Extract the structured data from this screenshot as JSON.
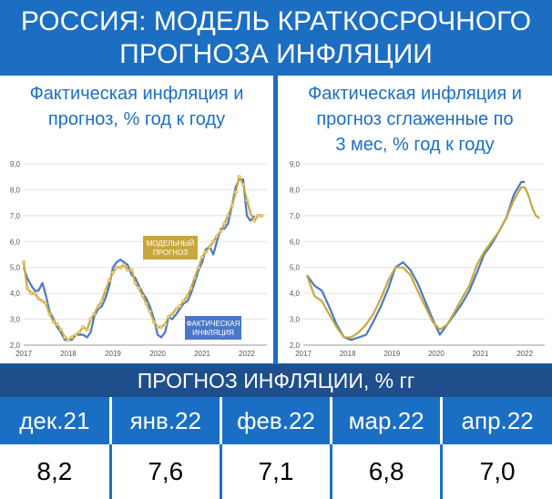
{
  "header": {
    "line1": "РОССИЯ: МОДЕЛЬ КРАТКОСРОЧНОГО",
    "line2": "ПРОГНОЗА ИНФЛЯЦИИ"
  },
  "left_panel": {
    "title_line1": "Фактическая инфляция и",
    "title_line2": "прогноз, % год к году"
  },
  "right_panel": {
    "title_line1": "Фактическая инфляция и",
    "title_line2": "прогноз сглаженные по",
    "title_line3": "3 мес, % год к году"
  },
  "forecast_table": {
    "title": "ПРОГНОЗ ИНФЛЯЦИИ, % гг",
    "months": [
      "дек.21",
      "янв.22",
      "фев.22",
      "мар.22",
      "апр.22"
    ],
    "values": [
      "8,2",
      "7,6",
      "7,1",
      "6,8",
      "7,0"
    ]
  },
  "colors": {
    "actual": "#4a78c8",
    "model": "#c8a83c",
    "header_bg": "#1b6ec2",
    "band_bg": "#1f4e8c"
  },
  "chart_data": [
    {
      "type": "line",
      "x_ticks": [
        "2017",
        "2018",
        "2019",
        "2020",
        "2021",
        "2022"
      ],
      "y_ticks": [
        "2,0",
        "3,0",
        "4,0",
        "5,0",
        "6,0",
        "7,0",
        "8,0",
        "9,0"
      ],
      "ylim": [
        2.0,
        9.0
      ],
      "xlim": [
        2017.0,
        2022.45
      ],
      "annotations": [
        {
          "text_line1": "МОДЕЛЬНЫЙ",
          "text_line2": "ПРОГНОЗ",
          "series": "model"
        },
        {
          "text_line1": "ФАКТИЧЕСКАЯ",
          "text_line2": "ИНФЛЯЦИЯ",
          "series": "actual"
        }
      ],
      "series": [
        {
          "key": "actual",
          "x": [
            2017.0,
            2017.08,
            2017.17,
            2017.25,
            2017.33,
            2017.42,
            2017.5,
            2017.58,
            2017.67,
            2017.75,
            2017.83,
            2017.92,
            2018.0,
            2018.08,
            2018.17,
            2018.25,
            2018.33,
            2018.42,
            2018.5,
            2018.58,
            2018.67,
            2018.75,
            2018.83,
            2018.92,
            2019.0,
            2019.08,
            2019.17,
            2019.25,
            2019.33,
            2019.42,
            2019.5,
            2019.58,
            2019.67,
            2019.75,
            2019.83,
            2019.92,
            2020.0,
            2020.08,
            2020.17,
            2020.25,
            2020.33,
            2020.42,
            2020.5,
            2020.58,
            2020.67,
            2020.75,
            2020.83,
            2020.92,
            2021.0,
            2021.08,
            2021.17,
            2021.25,
            2021.33,
            2021.42,
            2021.5,
            2021.58,
            2021.67,
            2021.75,
            2021.83,
            2021.92,
            2022.0,
            2022.08,
            2022.17
          ],
          "y": [
            5.0,
            4.6,
            4.3,
            4.1,
            4.1,
            4.4,
            3.9,
            3.3,
            3.0,
            2.7,
            2.5,
            2.2,
            2.2,
            2.2,
            2.4,
            2.4,
            2.4,
            2.3,
            2.5,
            3.1,
            3.4,
            3.5,
            3.8,
            4.3,
            5.0,
            5.2,
            5.3,
            5.2,
            5.1,
            4.7,
            4.6,
            4.3,
            4.0,
            3.8,
            3.5,
            3.0,
            2.4,
            2.3,
            2.5,
            3.1,
            3.0,
            3.2,
            3.4,
            3.6,
            3.7,
            4.0,
            4.4,
            4.9,
            5.2,
            5.7,
            5.8,
            5.5,
            6.0,
            6.5,
            6.5,
            6.7,
            7.4,
            8.1,
            8.4,
            8.4,
            7.0,
            6.8,
            7.0
          ]
        },
        {
          "key": "model",
          "x": [
            2017.0,
            2017.08,
            2017.17,
            2017.25,
            2017.33,
            2017.42,
            2017.5,
            2017.58,
            2017.67,
            2017.75,
            2017.83,
            2017.92,
            2018.0,
            2018.08,
            2018.17,
            2018.25,
            2018.33,
            2018.42,
            2018.5,
            2018.58,
            2018.67,
            2018.75,
            2018.83,
            2018.92,
            2019.0,
            2019.08,
            2019.17,
            2019.25,
            2019.33,
            2019.42,
            2019.5,
            2019.58,
            2019.67,
            2019.75,
            2019.83,
            2019.92,
            2020.0,
            2020.08,
            2020.17,
            2020.25,
            2020.33,
            2020.42,
            2020.5,
            2020.58,
            2020.67,
            2020.75,
            2020.83,
            2020.92,
            2021.0,
            2021.08,
            2021.17,
            2021.25,
            2021.33,
            2021.42,
            2021.5,
            2021.58,
            2021.67,
            2021.75,
            2021.83,
            2021.92,
            2022.0,
            2022.08,
            2022.17,
            2022.25,
            2022.33
          ],
          "y": [
            5.2,
            4.2,
            4.0,
            4.0,
            3.8,
            3.7,
            3.6,
            3.2,
            2.9,
            2.8,
            2.6,
            2.3,
            2.2,
            2.3,
            2.4,
            2.5,
            2.7,
            2.6,
            3.0,
            3.2,
            3.5,
            3.7,
            4.1,
            4.5,
            4.8,
            5.0,
            5.0,
            5.1,
            4.9,
            4.9,
            4.4,
            4.2,
            3.9,
            3.6,
            3.3,
            2.9,
            2.7,
            2.7,
            2.8,
            3.1,
            3.2,
            3.4,
            3.5,
            3.7,
            3.9,
            4.2,
            4.6,
            5.0,
            5.4,
            5.6,
            5.8,
            6.0,
            6.2,
            6.4,
            6.7,
            7.0,
            7.4,
            7.9,
            8.5,
            8.2,
            7.6,
            7.1,
            6.8,
            7.0,
            7.0
          ]
        }
      ]
    },
    {
      "type": "line",
      "x_ticks": [
        "2017",
        "2018",
        "2019",
        "2020",
        "2021",
        "2022"
      ],
      "y_ticks": [
        "2,0",
        "3,0",
        "4,0",
        "5,0",
        "6,0",
        "7,0",
        "8,0",
        "9,0"
      ],
      "ylim": [
        2.0,
        9.0
      ],
      "xlim": [
        2017.0,
        2022.45
      ],
      "series": [
        {
          "key": "actual",
          "x": [
            2017.08,
            2017.25,
            2017.42,
            2017.58,
            2017.75,
            2017.92,
            2018.08,
            2018.25,
            2018.42,
            2018.58,
            2018.75,
            2018.92,
            2019.08,
            2019.25,
            2019.42,
            2019.58,
            2019.75,
            2019.92,
            2020.08,
            2020.25,
            2020.42,
            2020.58,
            2020.75,
            2020.92,
            2021.08,
            2021.25,
            2021.42,
            2021.58,
            2021.75,
            2021.92,
            2022.0
          ],
          "y": [
            4.7,
            4.3,
            4.1,
            3.5,
            2.8,
            2.3,
            2.2,
            2.3,
            2.4,
            2.9,
            3.5,
            4.2,
            5.0,
            5.2,
            4.9,
            4.4,
            3.7,
            3.0,
            2.4,
            2.8,
            3.2,
            3.6,
            4.1,
            4.8,
            5.5,
            5.9,
            6.4,
            6.9,
            7.8,
            8.3,
            8.3
          ]
        },
        {
          "key": "model",
          "x": [
            2017.08,
            2017.25,
            2017.42,
            2017.58,
            2017.75,
            2017.92,
            2018.08,
            2018.25,
            2018.42,
            2018.58,
            2018.75,
            2018.92,
            2019.08,
            2019.25,
            2019.42,
            2019.58,
            2019.75,
            2019.92,
            2020.08,
            2020.25,
            2020.42,
            2020.58,
            2020.75,
            2020.92,
            2021.08,
            2021.25,
            2021.42,
            2021.58,
            2021.75,
            2021.92,
            2022.0,
            2022.08,
            2022.17,
            2022.25,
            2022.33
          ],
          "y": [
            4.7,
            3.9,
            3.7,
            3.2,
            2.7,
            2.3,
            2.3,
            2.5,
            2.8,
            3.2,
            3.8,
            4.5,
            5.0,
            5.0,
            4.7,
            4.1,
            3.5,
            2.9,
            2.6,
            2.8,
            3.3,
            3.8,
            4.3,
            5.1,
            5.6,
            6.0,
            6.4,
            6.9,
            7.6,
            8.1,
            8.1,
            7.8,
            7.3,
            7.0,
            6.9
          ]
        }
      ]
    }
  ]
}
